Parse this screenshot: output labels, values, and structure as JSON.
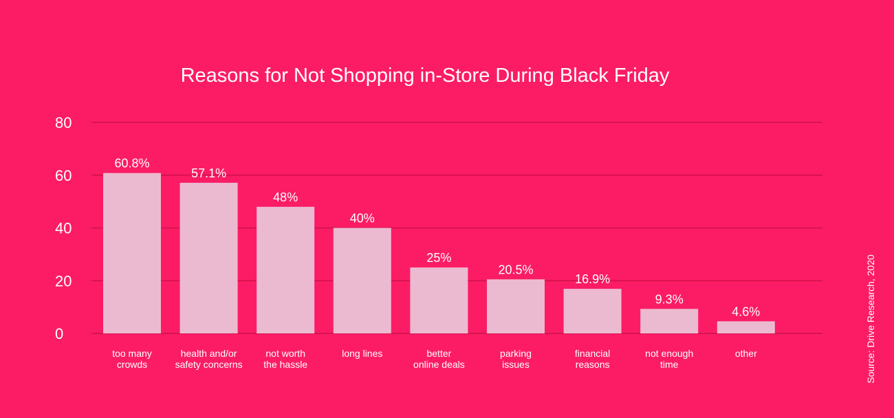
{
  "chart_data": {
    "type": "bar",
    "title": "Reasons for Not Shopping in-Store During Black Friday",
    "categories": [
      [
        "too many",
        "crowds"
      ],
      [
        "health and/or",
        "safety concerns"
      ],
      [
        "not worth",
        "the hassle"
      ],
      [
        "long lines"
      ],
      [
        "better",
        "online deals"
      ],
      [
        "parking",
        "issues"
      ],
      [
        "financial",
        "reasons"
      ],
      [
        "not enough",
        "time"
      ],
      [
        "other"
      ]
    ],
    "values": [
      60.8,
      57.1,
      48,
      40,
      25,
      20.5,
      16.9,
      9.3,
      4.6
    ],
    "data_labels": [
      "60.8%",
      "57.1%",
      "48%",
      "40%",
      "25%",
      "20.5%",
      "16.9%",
      "9.3%",
      "4.6%"
    ],
    "yticks": [
      0,
      20,
      40,
      60,
      80
    ],
    "ylim": [
      0,
      80
    ],
    "xlabel": "",
    "ylabel": "",
    "grid": true,
    "legend": "none",
    "colors": {
      "background": "#fc1c66",
      "bar": "#ecbad0",
      "gridline": "#d8134f",
      "text": "#ffffff"
    }
  },
  "source": "Source: Drive Research, 2020"
}
